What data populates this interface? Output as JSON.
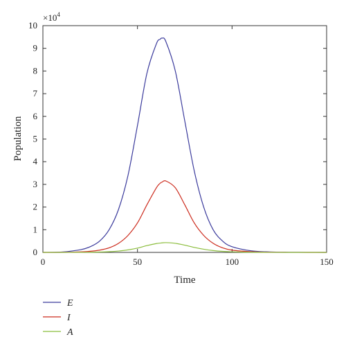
{
  "chart_data": {
    "type": "line",
    "xlabel": "Time",
    "ylabel": "Population",
    "xlim": [
      0,
      150
    ],
    "ylim": [
      0,
      100000
    ],
    "x_ticks": [
      "0",
      "50",
      "100",
      "150"
    ],
    "y_ticks": [
      "0",
      "1",
      "2",
      "3",
      "4",
      "5",
      "6",
      "7",
      "8",
      "9",
      "10"
    ],
    "y_multiplier": "×10",
    "y_multiplier_exponent": "4",
    "grid": false,
    "legend_position": "bottom-left",
    "x": [
      0,
      10,
      20,
      25,
      30,
      35,
      40,
      45,
      50,
      55,
      60,
      62,
      63,
      65,
      70,
      75,
      80,
      85,
      90,
      95,
      100,
      110,
      120,
      130,
      140,
      150
    ],
    "series": [
      {
        "name": "E",
        "color": "#3a3a9c",
        "values": [
          0,
          150,
          1200,
          2500,
          5000,
          10000,
          19000,
          34000,
          56000,
          79000,
          92000,
          94000,
          94500,
          93000,
          80000,
          58000,
          36000,
          20000,
          10000,
          5000,
          2500,
          700,
          200,
          60,
          20,
          5
        ]
      },
      {
        "name": "I",
        "color": "#cc2a1c",
        "values": [
          0,
          30,
          250,
          500,
          1000,
          2000,
          4000,
          7500,
          13000,
          21000,
          28500,
          30500,
          31000,
          31500,
          28500,
          21000,
          13000,
          7500,
          4000,
          2000,
          1000,
          300,
          80,
          25,
          8,
          2
        ]
      },
      {
        "name": "A",
        "color": "#8bbd3c",
        "values": [
          0,
          5,
          40,
          80,
          150,
          300,
          600,
          1100,
          1900,
          3000,
          3900,
          4100,
          4200,
          4300,
          4000,
          3200,
          2200,
          1400,
          800,
          450,
          250,
          70,
          20,
          6,
          2,
          0
        ]
      }
    ]
  }
}
